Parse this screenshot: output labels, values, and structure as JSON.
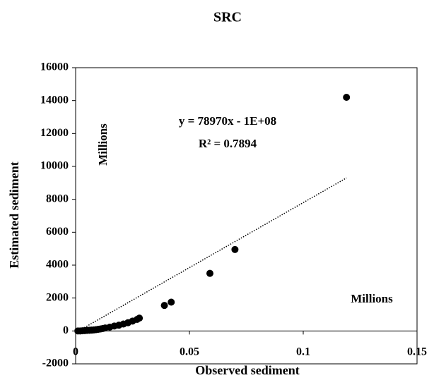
{
  "chart_data": {
    "type": "scatter",
    "title": "SRC",
    "xlabel": "Observed sediment",
    "ylabel": "Estimated  sediment",
    "annotations": [
      "y = 78970x - 1E+08",
      "R² = 0.7894",
      "Millions",
      "Millions"
    ],
    "color": "#000000",
    "x": [
      0.001,
      0.002,
      0.003,
      0.004,
      0.005,
      0.006,
      0.007,
      0.008,
      0.009,
      0.01,
      0.011,
      0.012,
      0.013,
      0.015,
      0.017,
      0.019,
      0.021,
      0.023,
      0.025,
      0.027,
      0.028,
      0.039,
      0.042,
      0.059,
      0.07,
      0.119
    ],
    "values": [
      0,
      0,
      10,
      20,
      30,
      40,
      50,
      60,
      80,
      100,
      120,
      150,
      180,
      230,
      300,
      350,
      420,
      500,
      600,
      700,
      780,
      1550,
      1750,
      3500,
      4950,
      14200
    ],
    "trendline": {
      "x": [
        0,
        0.119
      ],
      "values": [
        -100,
        9300
      ]
    },
    "xlim": [
      0,
      0.15
    ],
    "xticks": [
      0,
      0.05,
      0.1,
      0.15
    ],
    "ylim": [
      -2000,
      16000
    ],
    "yticks": [
      -2000,
      0,
      2000,
      4000,
      6000,
      8000,
      10000,
      12000,
      14000,
      16000
    ]
  }
}
